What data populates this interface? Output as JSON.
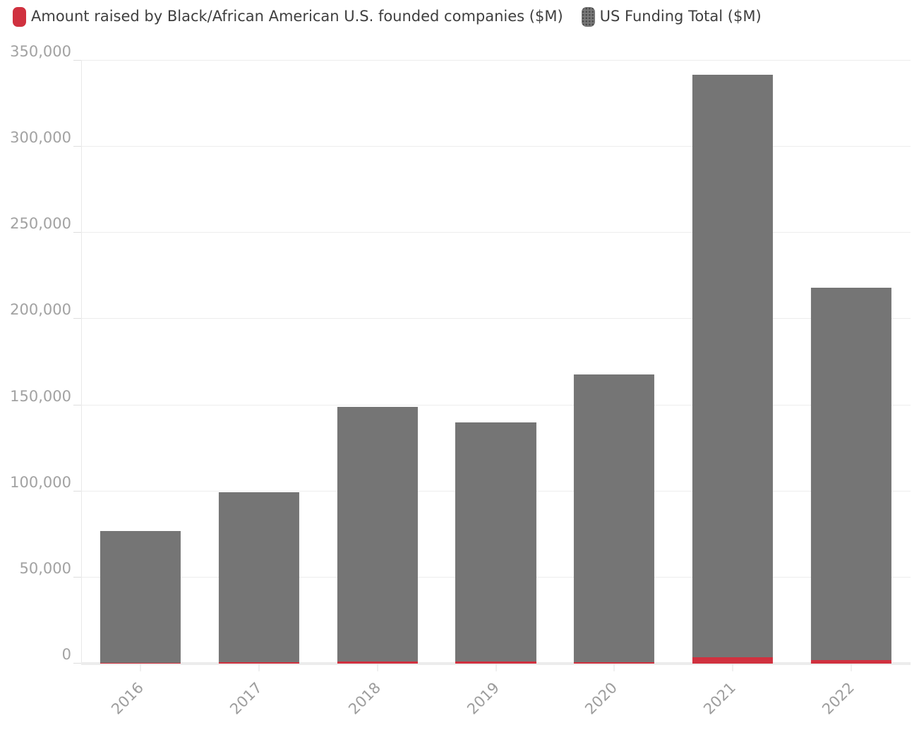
{
  "legend": {
    "items": [
      {
        "label": "Amount raised by Black/African American U.S. founded companies ($M)",
        "color": "#d0313f",
        "textured": false
      },
      {
        "label": "US Funding Total ($M)",
        "color": "#787878",
        "textured": true
      }
    ]
  },
  "chart_data": {
    "type": "bar",
    "stacked": true,
    "categories": [
      "2016",
      "2017",
      "2018",
      "2019",
      "2020",
      "2021",
      "2022"
    ],
    "series": [
      {
        "name": "Amount raised by Black/African American U.S. founded companies ($M)",
        "color": "#d0313f",
        "values": [
          300,
          800,
          1200,
          1200,
          1000,
          3700,
          2000
        ]
      },
      {
        "name": "US Funding Total ($M)",
        "color": "#757575",
        "values": [
          77000,
          99500,
          149000,
          140000,
          168000,
          342000,
          218000
        ]
      }
    ],
    "ylim": [
      0,
      350000
    ],
    "ytick_step": 50000,
    "ytick_labels": [
      "0",
      "50,000",
      "100,000",
      "150,000",
      "200,000",
      "250,000",
      "300,000",
      "350,000"
    ],
    "grid": true,
    "legend_position": "top-left",
    "x_label_rotation": -45
  },
  "colors": {
    "background": "#ffffff",
    "gridline": "#ededed",
    "axis_text": "#a2a2a2",
    "legend_text": "#3f3f3f",
    "bar_gray": "#757575",
    "bar_red": "#d0313f"
  }
}
